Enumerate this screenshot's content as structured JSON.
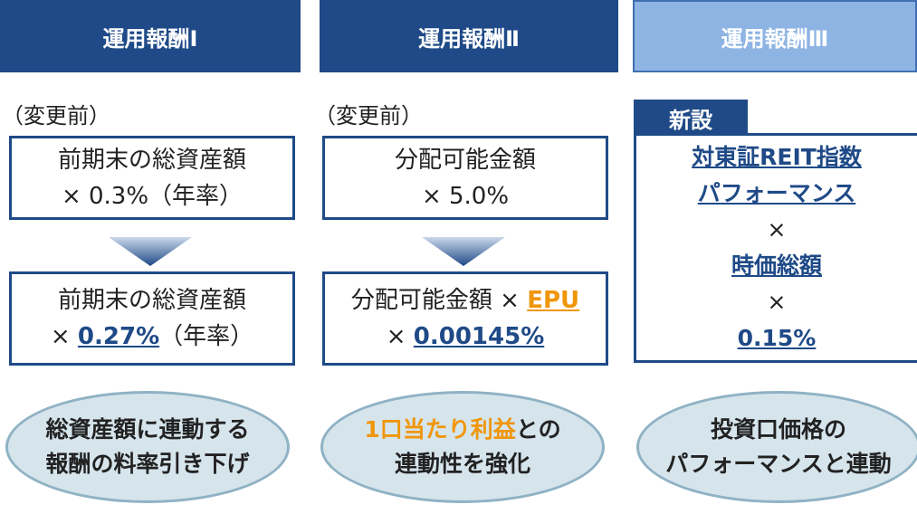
{
  "columns": [
    {
      "header": "運用報酬Ⅰ",
      "note": "（変更前）",
      "before": {
        "line1": "前期末の総資産額",
        "line2": "× 0.3%（年率）"
      },
      "after": {
        "line1": "前期末の総資産額",
        "line2_pre": "× ",
        "line2_rate": "0.27%",
        "line2_post": "（年率）"
      },
      "bubble": {
        "line1": "総資産額に連動する",
        "line2": "報酬の料率引き下げ"
      }
    },
    {
      "header": "運用報酬Ⅱ",
      "note": "（変更前）",
      "before": {
        "line1": "分配可能金額",
        "line2": "× 5.0%"
      },
      "after": {
        "line1_pre": "分配可能金額 × ",
        "line1_epu": "EPU",
        "line2_pre": "× ",
        "line2_rate": "0.00145%"
      },
      "bubble": {
        "line1_highlight": "1口当たり利益",
        "line1_rest": "との",
        "line2": "連動性を強化"
      }
    },
    {
      "header": "運用報酬Ⅲ",
      "tag": "新設",
      "formula": [
        "対東証REIT指数",
        "パフォーマンス",
        "×",
        "時価総額",
        "×",
        "0.15%"
      ],
      "bubble": {
        "line1": "投資口価格の",
        "line2": "パフォーマンスと連動"
      }
    }
  ]
}
